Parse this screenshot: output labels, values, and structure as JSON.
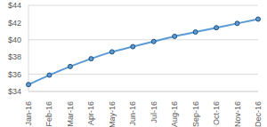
{
  "chart_data": {
    "type": "line",
    "categories": [
      "Jan-16",
      "Feb-16",
      "Mar-16",
      "Apr-16",
      "May-16",
      "Jun-16",
      "Jul-16",
      "Aug-16",
      "Sep-16",
      "Oct-16",
      "Nov-16",
      "Dec-16"
    ],
    "values": [
      34.8,
      35.9,
      36.9,
      37.8,
      38.6,
      39.2,
      39.8,
      40.4,
      40.9,
      41.4,
      41.9,
      42.4
    ],
    "color": "#5b9bd5",
    "marker": "circle",
    "ylim": [
      34,
      44
    ],
    "yticks": [
      {
        "value": 34,
        "label": "$34"
      },
      {
        "value": 36,
        "label": "$36"
      },
      {
        "value": 38,
        "label": "$38"
      },
      {
        "value": 40,
        "label": "$40"
      },
      {
        "value": 42,
        "label": "$42"
      },
      {
        "value": 44,
        "label": "$44"
      }
    ],
    "grid": true
  }
}
